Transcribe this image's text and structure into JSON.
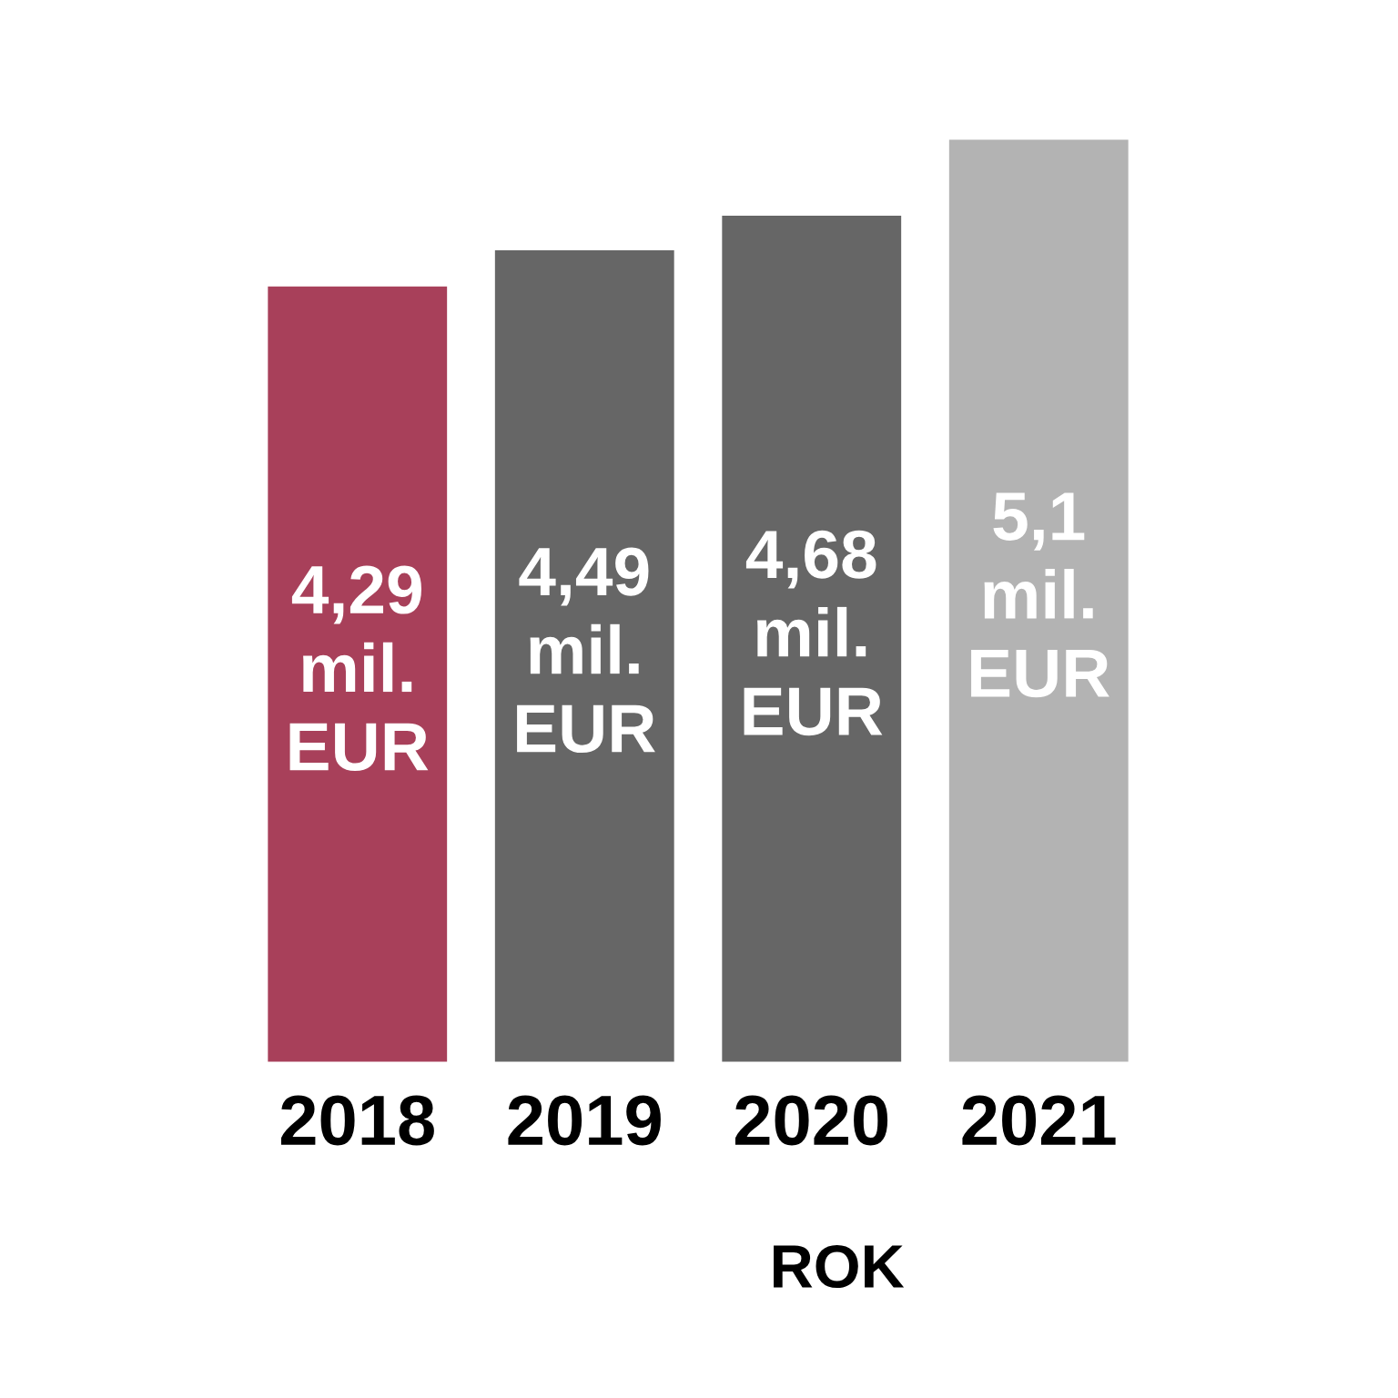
{
  "chart_data": {
    "type": "bar",
    "xlabel": "ROK",
    "categories": [
      "2018",
      "2019",
      "2020",
      "2021"
    ],
    "values": [
      4.29,
      4.49,
      4.68,
      5.1
    ],
    "colors": [
      "#a8405a",
      "#666666",
      "#666666",
      "#b3b3b3"
    ],
    "value_labels": [
      "4,29\nmil.\nEUR",
      "4,49\nmil.\nEUR",
      "4,68\nmil.\nEUR",
      "5,1\nmil.\nEUR"
    ]
  }
}
